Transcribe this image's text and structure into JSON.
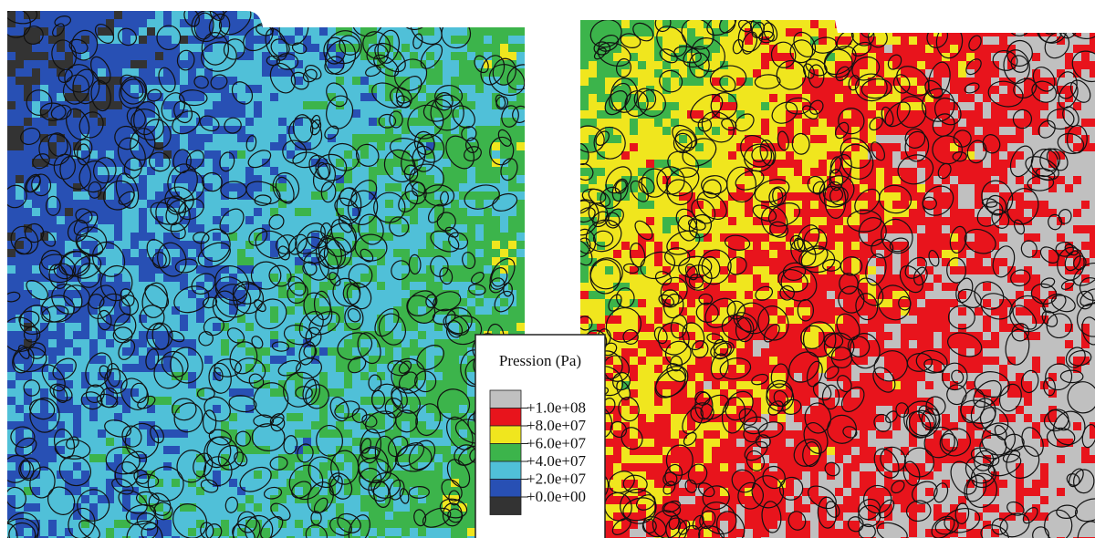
{
  "legend": {
    "title": "Pression (Pa)",
    "items": [
      {
        "color": "#c0c0c0",
        "label": "+1.0e+08"
      },
      {
        "color": "#e8141c",
        "label": "+8.0e+07"
      },
      {
        "color": "#f0e61e",
        "label": "+6.0e+07"
      },
      {
        "color": "#3cb44b",
        "label": "+4.0e+07"
      },
      {
        "color": "#50c0d8",
        "label": "+2.0e+07"
      },
      {
        "color": "#2850b4",
        "label": "+0.0e+00"
      },
      {
        "color": "#333333"
      }
    ]
  }
}
